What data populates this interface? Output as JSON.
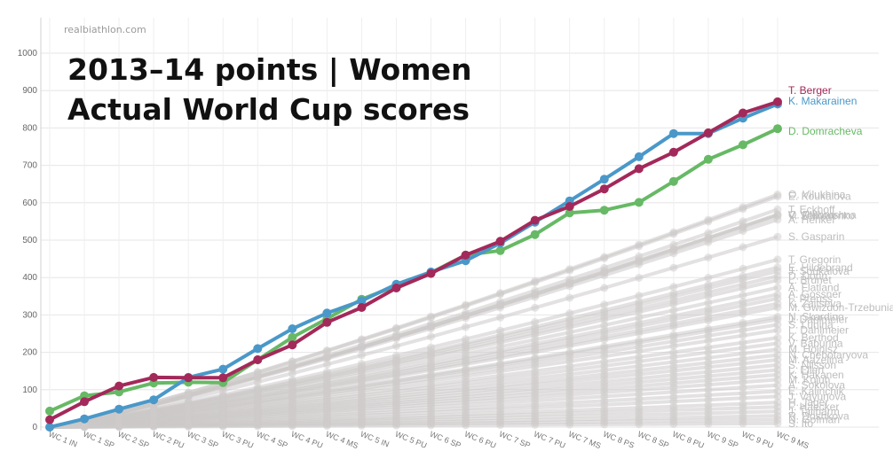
{
  "watermark": "realbiathlon.com",
  "title_line1": "2013–14 points  |  Women",
  "title_line2": "Actual World Cup scores",
  "chart_data": {
    "type": "line",
    "x": [
      "WC 1 IN",
      "WC 1 SP",
      "WC 2 SP",
      "WC 2 PU",
      "WC 3 SP",
      "WC 3 PU",
      "WC 4 SP",
      "WC 4 PU",
      "WC 4 MS",
      "WC 5 IN",
      "WC 5 PU",
      "WC 6 SP",
      "WC 6 PU",
      "WC 7 SP",
      "WC 7 PU",
      "WC 7 MS",
      "WC 8 PS",
      "WC 8 SP",
      "WC 8 PU",
      "WC 9 SP",
      "WC 9 PU",
      "WC 9 MS"
    ],
    "ylim": [
      0,
      1000
    ],
    "yticks": [
      0,
      100,
      200,
      300,
      400,
      500,
      600,
      700,
      800,
      900,
      1000
    ],
    "grid": true,
    "series": [
      {
        "name": "T. Berger",
        "color": "#a3295a",
        "values": [
          20,
          68,
          110,
          133,
          132,
          132,
          180,
          220,
          280,
          320,
          372,
          411,
          460,
          497,
          553,
          590,
          637,
          691,
          735,
          787,
          840,
          870
        ]
      },
      {
        "name": "K. Makarainen",
        "color": "#4a98c9",
        "values": [
          0,
          22,
          48,
          73,
          133,
          155,
          210,
          263,
          305,
          338,
          382,
          415,
          445,
          492,
          548,
          605,
          663,
          723,
          785,
          785,
          826,
          864
        ]
      },
      {
        "name": "D. Domracheva",
        "color": "#67b965",
        "values": [
          43,
          84,
          94,
          118,
          120,
          119,
          180,
          240,
          290,
          342,
          378,
          413,
          460,
          472,
          515,
          573,
          580,
          601,
          657,
          716,
          755,
          798
        ]
      }
    ],
    "background_labels": [
      {
        "name": "O. Vilukhina",
        "value": 622
      },
      {
        "name": "E. Koukalova",
        "value": 617
      },
      {
        "name": "T. Eckhoff",
        "value": 582
      },
      {
        "name": "V. Vitkova",
        "value": 568
      },
      {
        "name": "O. Pidhrushna",
        "value": 568
      },
      {
        "name": "V. Semerenko",
        "value": 565
      },
      {
        "name": "A. Henkel",
        "value": 555
      },
      {
        "name": "S. Gasparin",
        "value": 509
      },
      {
        "name": "T. Gregorin",
        "value": 448
      },
      {
        "name": "E. Hildebrand",
        "value": 427
      },
      {
        "name": "J. Soukalova",
        "value": 417
      },
      {
        "name": "D. Dorin",
        "value": 404
      },
      {
        "name": "L. Brunet",
        "value": 393
      },
      {
        "name": "A. Flatland",
        "value": 373
      },
      {
        "name": "A. Gossner",
        "value": 355
      },
      {
        "name": "F. Preuss",
        "value": 344
      },
      {
        "name": "K. Zaitseva",
        "value": 330
      },
      {
        "name": "M. Gwizdon-Trzebuniak",
        "value": 320
      },
      {
        "name": "N. Skardino",
        "value": 295
      },
      {
        "name": "J. Dahlmeier",
        "value": 288
      },
      {
        "name": "S. Lunina",
        "value": 274
      },
      {
        "name": "L. Dahlmeier",
        "value": 259
      },
      {
        "name": "K. Berthod",
        "value": 239
      },
      {
        "name": "V. Baburina",
        "value": 224
      },
      {
        "name": "M. Hojnisz",
        "value": 208
      },
      {
        "name": "N. Chebotaryova",
        "value": 193
      },
      {
        "name": "M. Aazelina",
        "value": 180
      },
      {
        "name": "S. Nilsson",
        "value": 166
      },
      {
        "name": "L. Ellert",
        "value": 153
      },
      {
        "name": "K. Hakanen",
        "value": 140
      },
      {
        "name": "M. Kojuh",
        "value": 127
      },
      {
        "name": "A. Sokolova",
        "value": 112
      },
      {
        "name": "E. Kalinchik",
        "value": 96
      },
      {
        "name": "J. Vayunova",
        "value": 82
      },
      {
        "name": "H. Jager",
        "value": 66
      },
      {
        "name": "F. Haecker",
        "value": 54
      },
      {
        "name": "J. Talihärm",
        "value": 42
      },
      {
        "name": "R. Doshkova",
        "value": 30
      },
      {
        "name": "N. Gofman",
        "value": 20
      },
      {
        "name": "S. Ito",
        "value": 10
      }
    ]
  }
}
